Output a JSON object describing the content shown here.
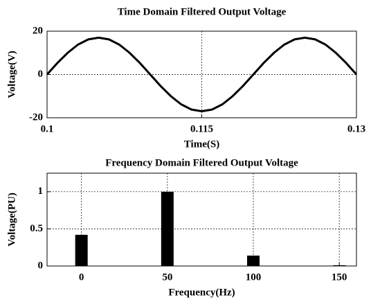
{
  "chart_data": [
    {
      "type": "line",
      "title": "Time Domain Filtered Output Voltage",
      "x_label": "Time(S)",
      "y_label": "Voltage(V)",
      "x": [
        0.1,
        0.101,
        0.102,
        0.103,
        0.104,
        0.105,
        0.106,
        0.107,
        0.108,
        0.109,
        0.11,
        0.111,
        0.112,
        0.113,
        0.114,
        0.115,
        0.116,
        0.117,
        0.118,
        0.119,
        0.12,
        0.121,
        0.122,
        0.123,
        0.124,
        0.125,
        0.126,
        0.127,
        0.128,
        0.129,
        0.13
      ],
      "series": [
        {
          "color": "#000000",
          "values": [
            0,
            5.3,
            10,
            13.8,
            16.2,
            17,
            16.2,
            13.8,
            10,
            5.3,
            0,
            -5.3,
            -10,
            -13.8,
            -16.2,
            -17,
            -16.2,
            -13.8,
            -10,
            -5.3,
            0,
            5.3,
            10,
            13.8,
            16.2,
            17,
            16.2,
            13.8,
            10,
            5.3,
            0
          ]
        }
      ],
      "xlim": [
        0.1,
        0.13
      ],
      "xticks": [
        0.1,
        0.115,
        0.13
      ],
      "ylim": [
        -20,
        20
      ],
      "yticks": [
        -20,
        0,
        20
      ]
    },
    {
      "type": "bar",
      "title": "Frequency Domain Filtered Output Voltage",
      "x_label": "Frequency(Hz)",
      "y_label": "Voltage(PU)",
      "x": [
        0,
        50,
        100,
        150
      ],
      "values": [
        0.42,
        1,
        0.14,
        0.01
      ],
      "color": "#000000",
      "xlim": [
        -20,
        160
      ],
      "xticks": [
        0,
        50,
        100,
        150
      ],
      "ylim": [
        0,
        1.25
      ],
      "yticks": [
        0,
        0.5,
        1
      ]
    }
  ]
}
